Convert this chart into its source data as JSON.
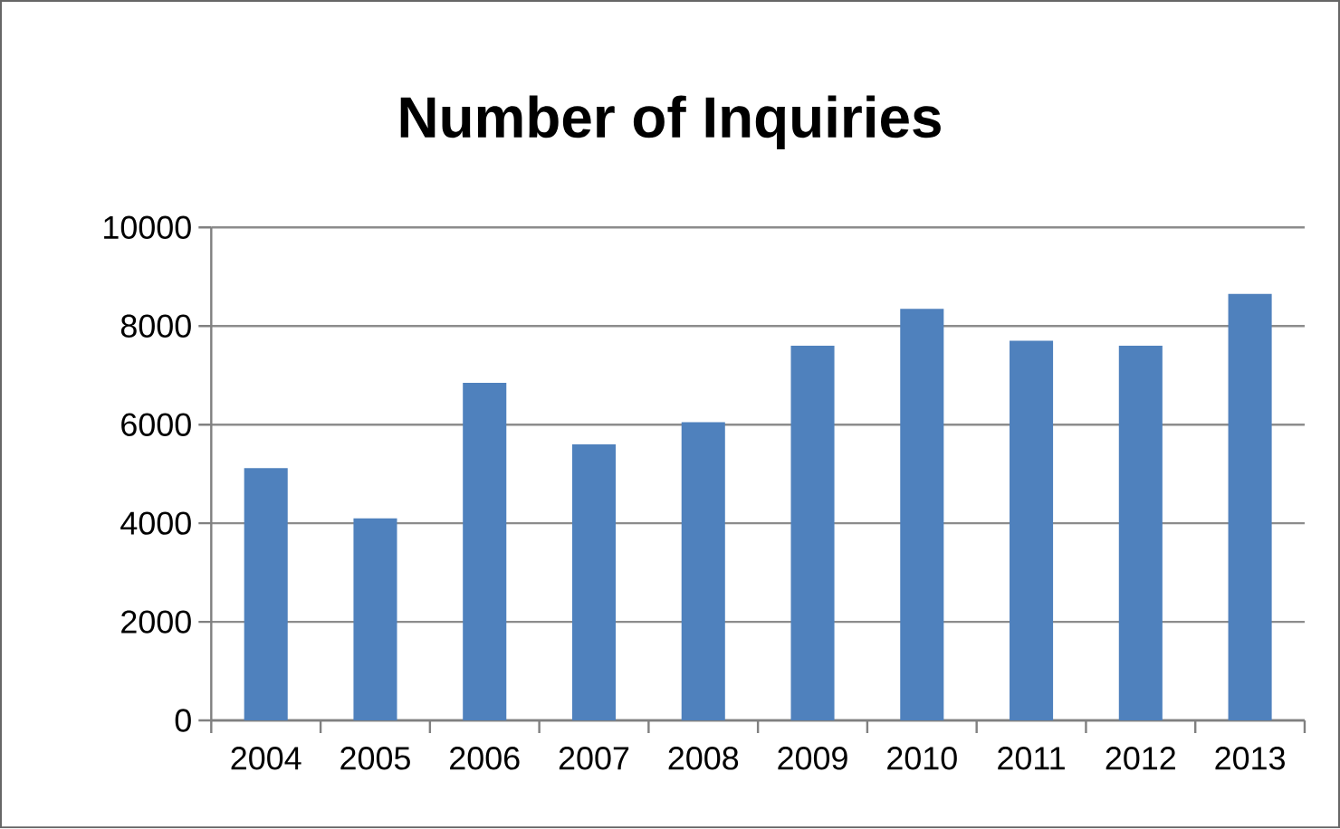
{
  "chart_data": {
    "type": "bar",
    "title": "Number of Inquiries",
    "categories": [
      "2004",
      "2005",
      "2006",
      "2007",
      "2008",
      "2009",
      "2010",
      "2011",
      "2012",
      "2013"
    ],
    "values": [
      5120,
      4100,
      6850,
      5600,
      6050,
      7600,
      8350,
      7700,
      7600,
      8650
    ],
    "color": "#4f81bd",
    "ylim": [
      0,
      10000
    ],
    "yticks": [
      0,
      2000,
      4000,
      6000,
      8000,
      10000
    ],
    "grid": "y"
  }
}
